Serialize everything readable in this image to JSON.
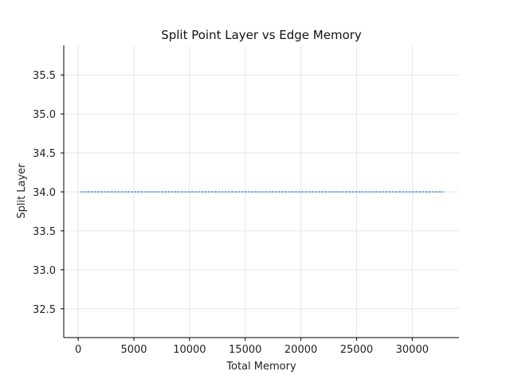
{
  "chart_data": {
    "type": "line",
    "title": "Split Point Layer vs Edge Memory",
    "xlabel": "Total Memory",
    "ylabel": "Split Layer",
    "xlim": [
      -1300,
      34200
    ],
    "ylim": [
      32.13,
      35.88
    ],
    "xticks": [
      0,
      5000,
      10000,
      15000,
      20000,
      25000,
      30000
    ],
    "yticks": [
      32.5,
      33.0,
      33.5,
      34.0,
      34.5,
      35.0,
      35.5
    ],
    "xtick_labels": [
      "0",
      "5000",
      "10000",
      "15000",
      "20000",
      "25000",
      "30000"
    ],
    "ytick_labels": [
      "32.5",
      "33.0",
      "33.5",
      "34.0",
      "34.5",
      "35.0",
      "35.5"
    ],
    "grid": true,
    "line_style": "dotted",
    "series": [
      {
        "color": "#4a86d4",
        "x": [
          256,
          512,
          1024,
          2048,
          4096,
          8192,
          16384,
          24576,
          32768
        ],
        "y": [
          34,
          34,
          34,
          34,
          34,
          34,
          34,
          34,
          34
        ]
      }
    ]
  }
}
